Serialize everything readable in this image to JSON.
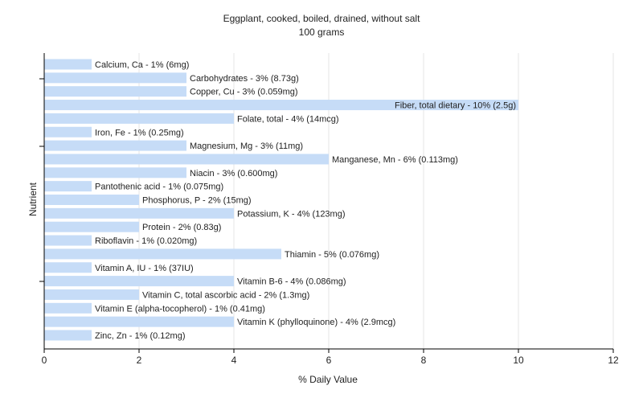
{
  "chart_data": {
    "type": "bar",
    "orientation": "horizontal",
    "title": "Eggplant, cooked, boiled, drained, without salt",
    "subtitle": "100 grams",
    "xlabel": "% Daily Value",
    "ylabel": "Nutrient",
    "xlim": [
      0,
      12
    ],
    "xticks": [
      "0",
      "2",
      "4",
      "6",
      "8",
      "10",
      "12"
    ],
    "grid": "vertical",
    "bar_color": "#c6dcf7",
    "categories": [
      "Calcium, Ca",
      "Carbohydrates",
      "Copper, Cu",
      "Fiber, total dietary",
      "Folate, total",
      "Iron, Fe",
      "Magnesium, Mg",
      "Manganese, Mn",
      "Niacin",
      "Pantothenic acid",
      "Phosphorus, P",
      "Potassium, K",
      "Protein",
      "Riboflavin",
      "Thiamin",
      "Vitamin A, IU",
      "Vitamin B-6",
      "Vitamin C, total ascorbic acid",
      "Vitamin E (alpha-tocopherol)",
      "Vitamin K (phylloquinone)",
      "Zinc, Zn"
    ],
    "values": [
      1,
      3,
      3,
      10,
      4,
      1,
      3,
      6,
      3,
      1,
      2,
      4,
      2,
      1,
      5,
      1,
      4,
      2,
      1,
      4,
      1
    ],
    "labels": [
      "Calcium, Ca - 1% (6mg)",
      "Carbohydrates - 3% (8.73g)",
      "Copper, Cu - 3% (0.059mg)",
      "Fiber, total dietary - 10% (2.5g)",
      "Folate, total - 4% (14mcg)",
      "Iron, Fe - 1% (0.25mg)",
      "Magnesium, Mg - 3% (11mg)",
      "Manganese, Mn - 6% (0.113mg)",
      "Niacin - 3% (0.600mg)",
      "Pantothenic acid - 1% (0.075mg)",
      "Phosphorus, P - 2% (15mg)",
      "Potassium, K - 4% (123mg)",
      "Protein - 2% (0.83g)",
      "Riboflavin - 1% (0.020mg)",
      "Thiamin - 5% (0.076mg)",
      "Vitamin A, IU - 1% (37IU)",
      "Vitamin B-6 - 4% (0.086mg)",
      "Vitamin C, total ascorbic acid - 2% (1.3mg)",
      "Vitamin E (alpha-tocopherol) - 1% (0.41mg)",
      "Vitamin K (phylloquinone) - 4% (2.9mcg)",
      "Zinc, Zn - 1% (0.12mg)"
    ]
  }
}
